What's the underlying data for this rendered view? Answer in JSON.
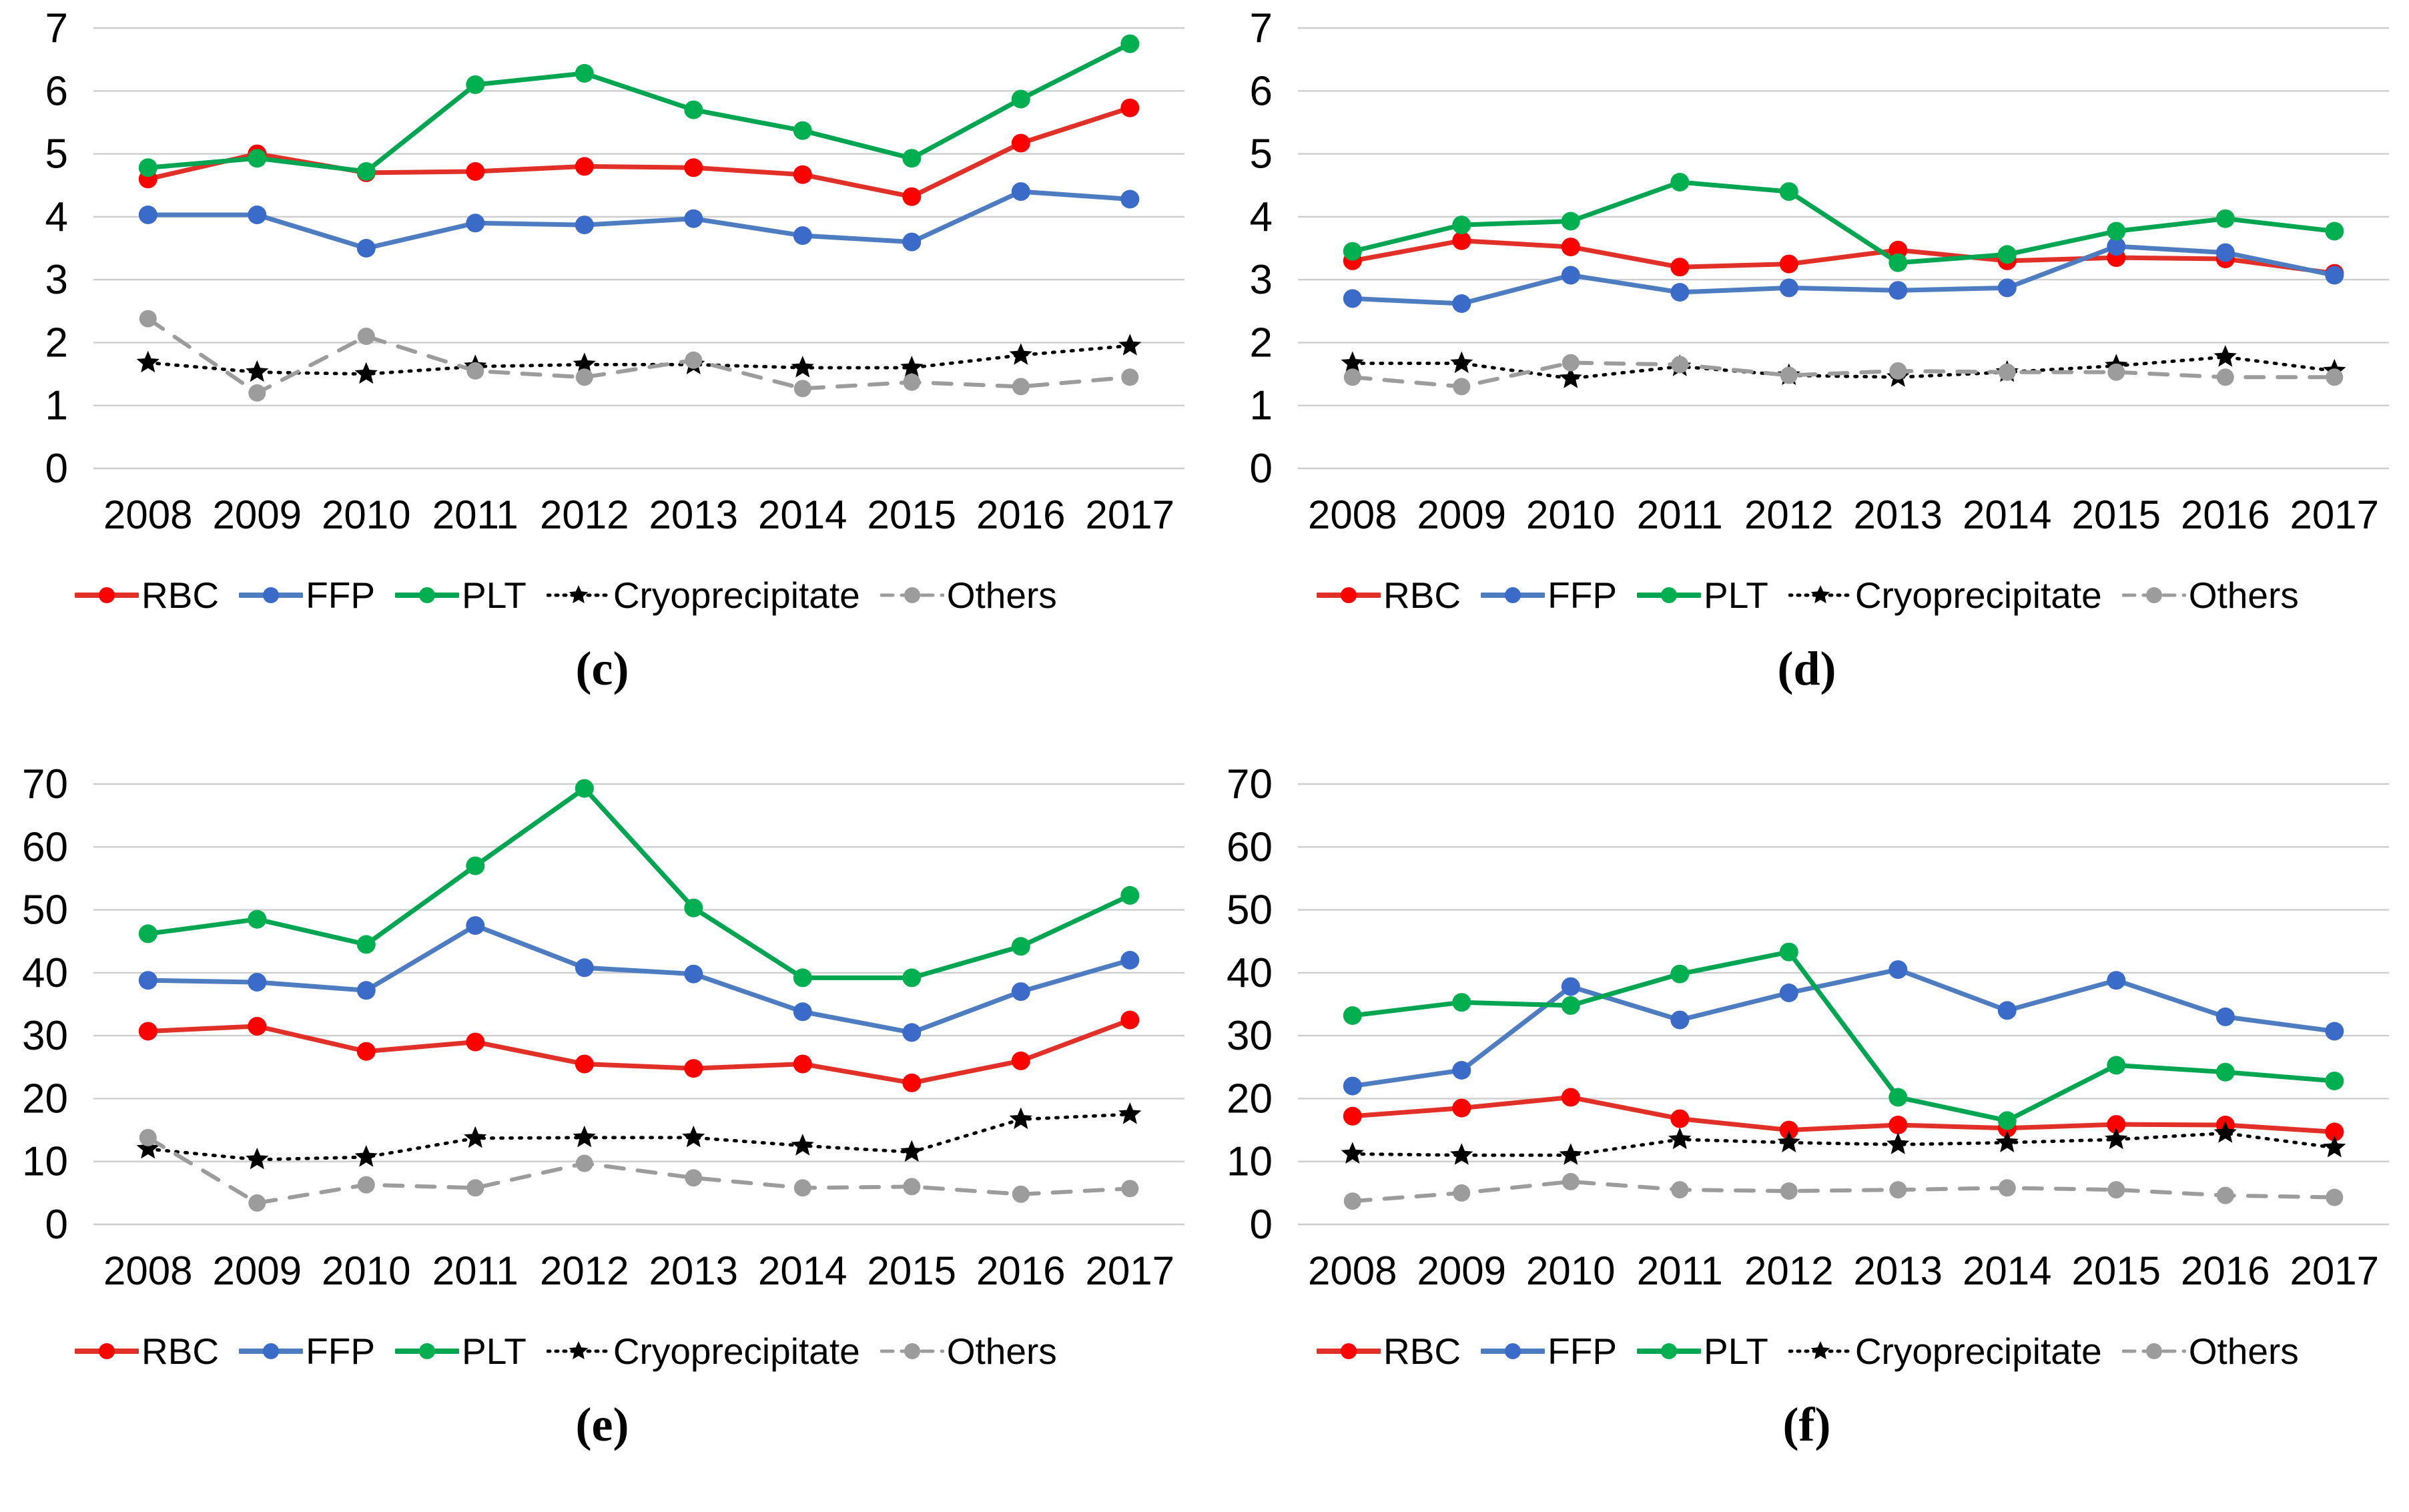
{
  "figure": {
    "background": "#ffffff",
    "grid_color": "#cdcdcd",
    "text_color": "#000000"
  },
  "series_styles": [
    {
      "name": "RBC",
      "marker_color": "#ff0000",
      "line_color": "#e03028",
      "dash": "solid",
      "marker": "circle"
    },
    {
      "name": "FFP",
      "marker_color": "#3b6bc9",
      "line_color": "#4e7cc0",
      "dash": "solid",
      "marker": "circle"
    },
    {
      "name": "PLT",
      "marker_color": "#00b050",
      "line_color": "#00a551",
      "dash": "solid",
      "marker": "circle"
    },
    {
      "name": "Cryoprecipitate",
      "marker_color": "#000000",
      "line_color": "#000000",
      "dash": "dotted",
      "marker": "star"
    },
    {
      "name": "Others",
      "marker_color": "#9c9c9c",
      "line_color": "#9c9c9c",
      "dash": "dashed",
      "marker": "circle"
    }
  ],
  "chart_data": [
    {
      "type": "line",
      "panel": "c",
      "caption": "(c)",
      "title": "",
      "xlabel": "",
      "ylabel": "",
      "x": [
        2008,
        2009,
        2010,
        2011,
        2012,
        2013,
        2014,
        2015,
        2016,
        2017
      ],
      "ylim": [
        0,
        7
      ],
      "yticks": [
        0,
        1,
        2,
        3,
        4,
        5,
        6,
        7
      ],
      "grid": true,
      "legend_position": "bottom",
      "series": [
        {
          "name": "RBC",
          "values": [
            4.6,
            5.0,
            4.7,
            4.72,
            4.8,
            4.78,
            4.67,
            4.32,
            5.17,
            5.73
          ]
        },
        {
          "name": "FFP",
          "values": [
            4.03,
            4.03,
            3.5,
            3.9,
            3.87,
            3.97,
            3.7,
            3.6,
            4.4,
            4.28
          ]
        },
        {
          "name": "PLT",
          "values": [
            4.78,
            4.93,
            4.72,
            6.1,
            6.28,
            5.7,
            5.37,
            4.93,
            5.87,
            6.75
          ]
        },
        {
          "name": "Cryoprecipitate",
          "values": [
            1.68,
            1.53,
            1.5,
            1.62,
            1.65,
            1.65,
            1.6,
            1.6,
            1.8,
            1.95
          ]
        },
        {
          "name": "Others",
          "values": [
            2.38,
            1.2,
            2.1,
            1.55,
            1.45,
            1.72,
            1.27,
            1.37,
            1.3,
            1.45
          ]
        }
      ]
    },
    {
      "type": "line",
      "panel": "d",
      "caption": "(d)",
      "title": "",
      "xlabel": "",
      "ylabel": "",
      "x": [
        2008,
        2009,
        2010,
        2011,
        2012,
        2013,
        2014,
        2015,
        2016,
        2017
      ],
      "ylim": [
        0,
        7
      ],
      "yticks": [
        0,
        1,
        2,
        3,
        4,
        5,
        6,
        7
      ],
      "grid": true,
      "legend_position": "bottom",
      "series": [
        {
          "name": "RBC",
          "values": [
            3.3,
            3.62,
            3.52,
            3.2,
            3.25,
            3.47,
            3.3,
            3.35,
            3.33,
            3.1
          ]
        },
        {
          "name": "FFP",
          "values": [
            2.7,
            2.62,
            3.07,
            2.8,
            2.87,
            2.83,
            2.87,
            3.53,
            3.43,
            3.07
          ]
        },
        {
          "name": "PLT",
          "values": [
            3.45,
            3.87,
            3.93,
            4.55,
            4.4,
            3.27,
            3.4,
            3.77,
            3.97,
            3.77
          ]
        },
        {
          "name": "Cryoprecipitate",
          "values": [
            1.67,
            1.67,
            1.43,
            1.62,
            1.48,
            1.45,
            1.53,
            1.63,
            1.77,
            1.55
          ]
        },
        {
          "name": "Others",
          "values": [
            1.45,
            1.3,
            1.68,
            1.65,
            1.48,
            1.55,
            1.53,
            1.53,
            1.45,
            1.45
          ]
        }
      ]
    },
    {
      "type": "line",
      "panel": "e",
      "caption": "(e)",
      "title": "",
      "xlabel": "",
      "ylabel": "",
      "x": [
        2008,
        2009,
        2010,
        2011,
        2012,
        2013,
        2014,
        2015,
        2016,
        2017
      ],
      "ylim": [
        0,
        70
      ],
      "yticks": [
        0,
        10,
        20,
        30,
        40,
        50,
        60,
        70
      ],
      "grid": true,
      "legend_position": "bottom",
      "series": [
        {
          "name": "RBC",
          "values": [
            30.7,
            31.5,
            27.5,
            29.0,
            25.5,
            24.8,
            25.5,
            22.5,
            26.0,
            32.5
          ]
        },
        {
          "name": "FFP",
          "values": [
            38.8,
            38.5,
            37.2,
            47.5,
            40.8,
            39.8,
            33.8,
            30.5,
            37.0,
            42.0
          ]
        },
        {
          "name": "PLT",
          "values": [
            46.2,
            48.5,
            44.5,
            57.0,
            69.3,
            50.3,
            39.2,
            39.2,
            44.2,
            52.3
          ]
        },
        {
          "name": "Cryoprecipitate",
          "values": [
            12.0,
            10.3,
            10.7,
            13.7,
            13.8,
            13.8,
            12.5,
            11.5,
            16.7,
            17.5
          ]
        },
        {
          "name": "Others",
          "values": [
            13.8,
            3.4,
            6.3,
            5.8,
            9.7,
            7.4,
            5.8,
            6.0,
            4.8,
            5.7
          ]
        }
      ]
    },
    {
      "type": "line",
      "panel": "f",
      "caption": "(f)",
      "title": "",
      "xlabel": "",
      "ylabel": "",
      "x": [
        2008,
        2009,
        2010,
        2011,
        2012,
        2013,
        2014,
        2015,
        2016,
        2017
      ],
      "ylim": [
        0,
        70
      ],
      "yticks": [
        0,
        10,
        20,
        30,
        40,
        50,
        60,
        70
      ],
      "grid": true,
      "legend_position": "bottom",
      "series": [
        {
          "name": "RBC",
          "values": [
            17.2,
            18.5,
            20.2,
            16.8,
            15.0,
            15.8,
            15.3,
            15.9,
            15.8,
            14.7
          ]
        },
        {
          "name": "FFP",
          "values": [
            22.0,
            24.5,
            37.8,
            32.5,
            36.8,
            40.5,
            34.0,
            38.8,
            33.0,
            30.7
          ]
        },
        {
          "name": "PLT",
          "values": [
            33.2,
            35.3,
            34.8,
            39.8,
            43.3,
            20.2,
            16.5,
            25.3,
            24.2,
            22.8
          ]
        },
        {
          "name": "Cryoprecipitate",
          "values": [
            11.2,
            11.0,
            11.0,
            13.5,
            13.0,
            12.7,
            13.0,
            13.5,
            14.5,
            12.2
          ]
        },
        {
          "name": "Others",
          "values": [
            3.7,
            5.0,
            6.8,
            5.5,
            5.3,
            5.5,
            5.8,
            5.5,
            4.6,
            4.3
          ]
        }
      ]
    }
  ]
}
